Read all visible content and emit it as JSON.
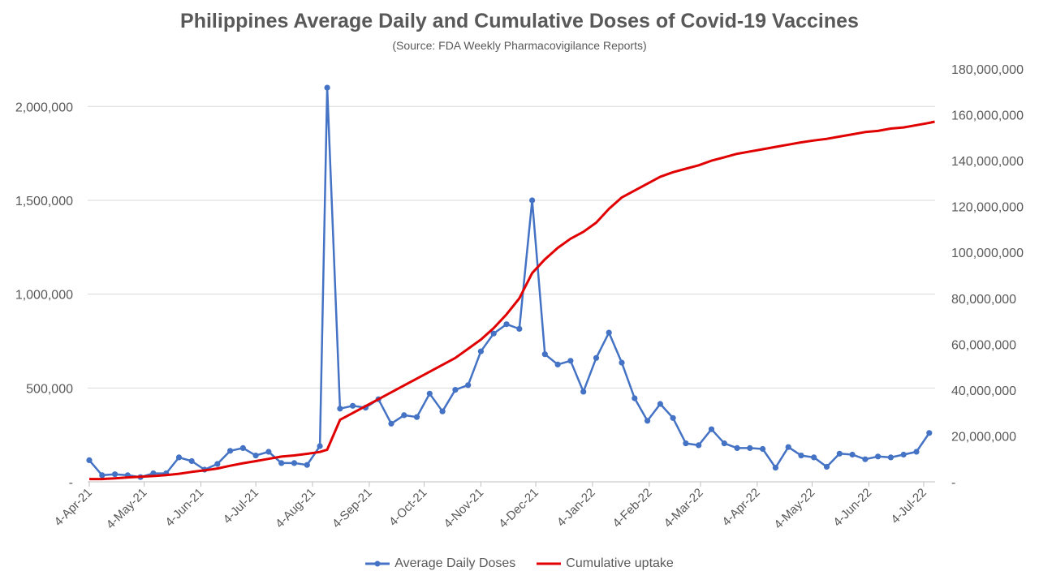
{
  "chart_data": {
    "type": "line",
    "title": "Philippines Average Daily and Cumulative Doses of Covid-19 Vaccines",
    "subtitle": "(Source: FDA Weekly Pharmacovigilance Reports)",
    "x_ticks": [
      "4-Apr-21",
      "4-May-21",
      "4-Jun-21",
      "4-Jul-21",
      "4-Aug-21",
      "4-Sep-21",
      "4-Oct-21",
      "4-Nov-21",
      "4-Dec-21",
      "4-Jan-22",
      "4-Feb-22",
      "4-Mar-22",
      "4-Apr-22",
      "4-May-22",
      "4-Jun-22",
      "4-Jul-22"
    ],
    "y_left": {
      "ticks": [
        "-",
        "500,000",
        "1,000,000",
        "1,500,000",
        "2,000,000"
      ],
      "tick_values": [
        0,
        500000,
        1000000,
        1500000,
        2000000
      ],
      "ylim": [
        0,
        2200000
      ]
    },
    "y_right": {
      "ticks": [
        "-",
        "20,000,000",
        "40,000,000",
        "60,000,000",
        "80,000,000",
        "100,000,000",
        "120,000,000",
        "140,000,000",
        "160,000,000",
        "180,000,000"
      ],
      "tick_values": [
        0,
        20000000,
        40000000,
        60000000,
        80000000,
        100000000,
        120000000,
        140000000,
        160000000,
        180000000
      ],
      "ylim": [
        0,
        180000000
      ]
    },
    "grid": "horizontal",
    "legend_position": "bottom",
    "series": [
      {
        "name": "Average Daily Doses",
        "axis": "left",
        "color": "#4472C4",
        "marker": "circle",
        "x": [
          "2021-04-04",
          "2021-04-11",
          "2021-04-18",
          "2021-04-25",
          "2021-05-02",
          "2021-05-09",
          "2021-05-16",
          "2021-05-23",
          "2021-05-30",
          "2021-06-06",
          "2021-06-13",
          "2021-06-20",
          "2021-06-27",
          "2021-07-04",
          "2021-07-11",
          "2021-07-18",
          "2021-07-25",
          "2021-08-01",
          "2021-08-08",
          "2021-08-12",
          "2021-08-19",
          "2021-08-26",
          "2021-09-02",
          "2021-09-09",
          "2021-09-16",
          "2021-09-23",
          "2021-09-30",
          "2021-10-07",
          "2021-10-14",
          "2021-10-21",
          "2021-10-28",
          "2021-11-04",
          "2021-11-11",
          "2021-11-18",
          "2021-11-25",
          "2021-12-02",
          "2021-12-09",
          "2021-12-16",
          "2021-12-23",
          "2021-12-30",
          "2022-01-06",
          "2022-01-13",
          "2022-01-20",
          "2022-01-27",
          "2022-02-03",
          "2022-02-10",
          "2022-02-17",
          "2022-02-24",
          "2022-03-03",
          "2022-03-10",
          "2022-03-17",
          "2022-03-24",
          "2022-03-31",
          "2022-04-07",
          "2022-04-14",
          "2022-04-21",
          "2022-04-28",
          "2022-05-05",
          "2022-05-12",
          "2022-05-19",
          "2022-05-26",
          "2022-06-02",
          "2022-06-09",
          "2022-06-16",
          "2022-06-23",
          "2022-06-30",
          "2022-07-07"
        ],
        "y": [
          115000,
          35000,
          40000,
          35000,
          25000,
          45000,
          45000,
          130000,
          110000,
          65000,
          95000,
          165000,
          180000,
          140000,
          160000,
          100000,
          100000,
          90000,
          190000,
          2100000,
          390000,
          405000,
          395000,
          440000,
          310000,
          355000,
          345000,
          470000,
          375000,
          490000,
          515000,
          695000,
          790000,
          840000,
          815000,
          1500000,
          680000,
          625000,
          645000,
          480000,
          660000,
          795000,
          635000,
          445000,
          325000,
          415000,
          340000,
          205000,
          195000,
          280000,
          205000,
          180000,
          180000,
          175000,
          75000,
          185000,
          140000,
          130000,
          80000,
          150000,
          145000,
          120000,
          135000,
          130000,
          145000,
          160000,
          260000
        ]
      },
      {
        "name": "Cumulative uptake",
        "axis": "right",
        "color": "#E00000",
        "x": [
          "2021-04-04",
          "2021-04-11",
          "2021-04-18",
          "2021-04-25",
          "2021-05-02",
          "2021-05-09",
          "2021-05-16",
          "2021-05-23",
          "2021-05-30",
          "2021-06-06",
          "2021-06-13",
          "2021-06-20",
          "2021-06-27",
          "2021-07-04",
          "2021-07-11",
          "2021-07-18",
          "2021-07-25",
          "2021-08-01",
          "2021-08-08",
          "2021-08-12",
          "2021-08-19",
          "2021-08-26",
          "2021-09-02",
          "2021-09-09",
          "2021-09-16",
          "2021-09-23",
          "2021-09-30",
          "2021-10-07",
          "2021-10-14",
          "2021-10-21",
          "2021-10-28",
          "2021-11-04",
          "2021-11-11",
          "2021-11-18",
          "2021-11-25",
          "2021-12-02",
          "2021-12-09",
          "2021-12-16",
          "2021-12-23",
          "2021-12-30",
          "2022-01-06",
          "2022-01-13",
          "2022-01-20",
          "2022-01-27",
          "2022-02-03",
          "2022-02-10",
          "2022-02-17",
          "2022-02-24",
          "2022-03-03",
          "2022-03-10",
          "2022-03-17",
          "2022-03-24",
          "2022-03-31",
          "2022-04-07",
          "2022-04-14",
          "2022-04-21",
          "2022-04-28",
          "2022-05-05",
          "2022-05-12",
          "2022-05-19",
          "2022-05-26",
          "2022-06-02",
          "2022-06-09",
          "2022-06-16",
          "2022-06-23",
          "2022-06-30",
          "2022-07-07",
          "2022-07-10"
        ],
        "y": [
          1200000,
          1200000,
          1500000,
          1900000,
          2200000,
          2500000,
          2900000,
          3500000,
          4300000,
          5000000,
          5800000,
          7000000,
          8100000,
          9000000,
          10000000,
          11000000,
          11500000,
          12200000,
          13000000,
          14000000,
          27000000,
          30000000,
          33000000,
          36000000,
          39000000,
          42000000,
          45000000,
          48000000,
          51000000,
          54000000,
          58000000,
          62000000,
          67000000,
          73000000,
          80000000,
          91000000,
          97000000,
          102000000,
          106000000,
          109000000,
          113000000,
          119000000,
          124000000,
          127000000,
          130000000,
          133000000,
          135000000,
          136500000,
          138000000,
          140000000,
          141500000,
          143000000,
          144000000,
          145000000,
          146000000,
          147000000,
          148000000,
          148800000,
          149500000,
          150500000,
          151500000,
          152500000,
          153000000,
          154000000,
          154500000,
          155500000,
          156500000,
          157000000
        ]
      }
    ]
  }
}
